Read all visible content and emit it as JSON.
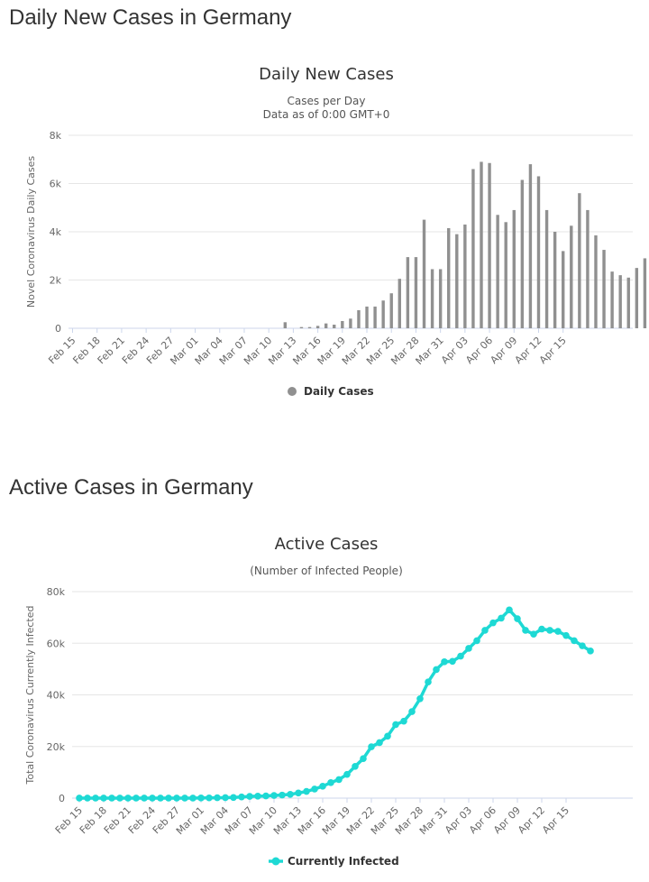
{
  "sections": [
    {
      "heading": "Daily New Cases in Germany"
    },
    {
      "heading": "Active Cases in Germany"
    }
  ],
  "chart_data": [
    {
      "type": "bar",
      "title": "Daily New Cases",
      "subtitle": [
        "Cases per Day",
        "Data as of 0:00 GMT+0"
      ],
      "xlabel": "",
      "ylabel": "Novel Coronavirus Daily Cases",
      "ylim": [
        0,
        8000
      ],
      "yticks": [
        0,
        2000,
        4000,
        6000,
        8000
      ],
      "ytick_labels": [
        "0",
        "2k",
        "4k",
        "6k",
        "8k"
      ],
      "x_tick_labels": [
        "Feb 15",
        "Feb 18",
        "Feb 21",
        "Feb 24",
        "Feb 27",
        "Mar 01",
        "Mar 04",
        "Mar 07",
        "Mar 10",
        "Mar 13",
        "Mar 16",
        "Mar 19",
        "Mar 22",
        "Mar 25",
        "Mar 28",
        "Mar 31",
        "Apr 03",
        "Apr 06",
        "Apr 09",
        "Apr 12",
        "Apr 15"
      ],
      "legend": "bottom-center",
      "grid": true,
      "color": "#909090",
      "series": [
        {
          "name": "Daily Cases",
          "values": [
            0,
            0,
            0,
            0,
            0,
            0,
            0,
            0,
            0,
            0,
            0,
            0,
            0,
            0,
            0,
            0,
            0,
            0,
            0,
            0,
            0,
            0,
            0,
            0,
            0,
            0,
            250,
            0,
            50,
            50,
            100,
            200,
            150,
            300,
            400,
            750,
            900,
            900,
            1150,
            1450,
            2050,
            2950,
            2950,
            4500,
            2450,
            2450,
            4150,
            3900,
            4300,
            6600,
            6900,
            6850,
            4700,
            4400,
            4900,
            6150,
            6800,
            6300,
            4900,
            4000,
            3200,
            4250,
            5600,
            4900,
            3850,
            3250,
            2350,
            2200,
            2100,
            2500,
            2900
          ]
        }
      ]
    },
    {
      "type": "line",
      "title": "Active Cases",
      "subtitle": [
        "(Number of Infected People)"
      ],
      "xlabel": "",
      "ylabel": "Total Coronavirus Currently Infected",
      "ylim": [
        0,
        80000
      ],
      "yticks": [
        0,
        20000,
        40000,
        60000,
        80000
      ],
      "ytick_labels": [
        "0",
        "20k",
        "40k",
        "60k",
        "80k"
      ],
      "x_tick_labels": [
        "Feb 15",
        "Feb 18",
        "Feb 21",
        "Feb 24",
        "Feb 27",
        "Mar 01",
        "Mar 04",
        "Mar 07",
        "Mar 10",
        "Mar 13",
        "Mar 16",
        "Mar 19",
        "Mar 22",
        "Mar 25",
        "Mar 28",
        "Mar 31",
        "Apr 03",
        "Apr 06",
        "Apr 09",
        "Apr 12",
        "Apr 15"
      ],
      "legend": "bottom-center",
      "grid": true,
      "color": "#1ed9d4",
      "series": [
        {
          "name": "Currently Infected",
          "values": [
            16,
            16,
            16,
            16,
            16,
            16,
            16,
            16,
            16,
            16,
            16,
            16,
            16,
            16,
            16,
            60,
            90,
            140,
            190,
            250,
            460,
            660,
            780,
            840,
            1040,
            1180,
            1450,
            2000,
            2600,
            3500,
            4600,
            6000,
            7200,
            9200,
            12300,
            15300,
            19900,
            21500,
            24000,
            28500,
            29800,
            33500,
            38500,
            45000,
            49800,
            52800,
            53000,
            55000,
            58000,
            61000,
            65000,
            67900,
            69700,
            72900,
            69500,
            65000,
            63500,
            65500,
            65000,
            64600,
            63000,
            61000,
            59000,
            57000
          ]
        }
      ]
    }
  ]
}
